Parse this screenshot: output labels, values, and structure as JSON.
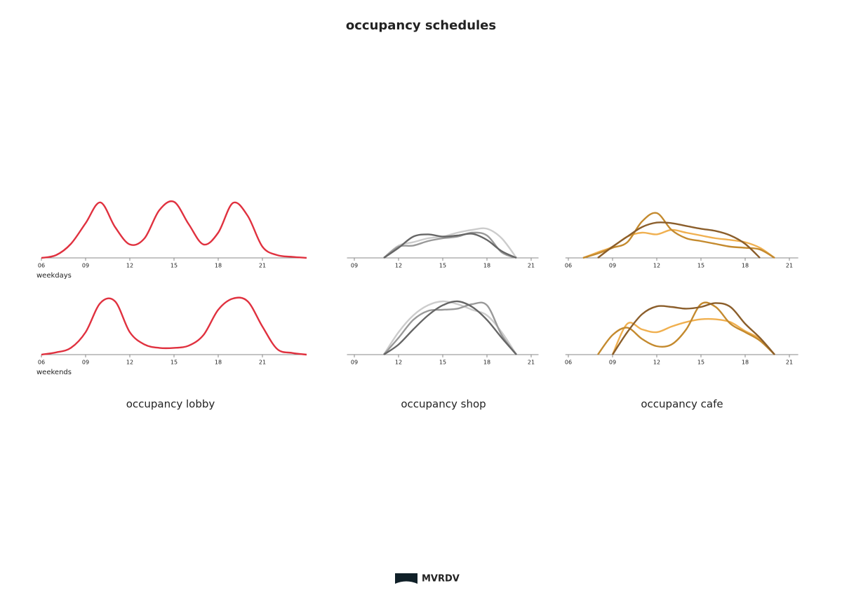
{
  "title": "occupancy schedules",
  "captions": [
    "occupancy lobby",
    "occupancy shop",
    "occupancy cafe"
  ],
  "logo": "MVRDV",
  "chart_data": [
    {
      "type": "line",
      "xlabel": "weekdays",
      "x": [
        6,
        7,
        8,
        9,
        10,
        11,
        12,
        13,
        14,
        15,
        16,
        17,
        18,
        19,
        20,
        21,
        22,
        23,
        24
      ],
      "series": [
        {
          "color": "#e0313f",
          "values": [
            0,
            5,
            25,
            62,
            99,
            55,
            24,
            35,
            85,
            100,
            60,
            24,
            45,
            98,
            75,
            20,
            5,
            2,
            0
          ]
        }
      ],
      "xlim": [
        6,
        24
      ],
      "ylim": [
        0,
        100
      ],
      "xticks": [
        {
          "value": 6,
          "label": "06"
        },
        {
          "value": 9,
          "label": "09"
        },
        12,
        15,
        18,
        21
      ]
    },
    {
      "type": "line",
      "xlabel": "weekends",
      "x": [
        6,
        7,
        8,
        9,
        10,
        11,
        12,
        13,
        14,
        15,
        16,
        17,
        18,
        19,
        20,
        21,
        22,
        23,
        24
      ],
      "series": [
        {
          "color": "#e0313f",
          "values": [
            0,
            4,
            12,
            40,
            92,
            95,
            40,
            18,
            12,
            12,
            16,
            35,
            80,
            100,
            95,
            50,
            10,
            3,
            0
          ]
        }
      ],
      "xlim": [
        6,
        24
      ],
      "ylim": [
        0,
        100
      ],
      "xticks": [
        {
          "value": 6,
          "label": "06"
        },
        {
          "value": 9,
          "label": "09"
        },
        12,
        15,
        18,
        21
      ]
    },
    {
      "type": "line",
      "x": [
        11,
        12,
        13,
        14,
        15,
        16,
        17,
        18,
        19,
        20
      ],
      "series": [
        {
          "color": "#cccccc",
          "values": [
            0,
            22,
            28,
            35,
            38,
            45,
            50,
            52,
            35,
            0
          ]
        },
        {
          "color": "#999999",
          "values": [
            0,
            20,
            22,
            30,
            35,
            38,
            45,
            40,
            10,
            0
          ]
        },
        {
          "color": "#666666",
          "values": [
            0,
            18,
            38,
            42,
            38,
            40,
            43,
            32,
            12,
            0
          ]
        }
      ],
      "xlim": [
        8.5,
        21.5
      ],
      "ylim": [
        0,
        100
      ],
      "xticks": [
        {
          "value": 9,
          "label": "09"
        },
        12,
        15,
        18,
        21
      ]
    },
    {
      "type": "line",
      "x": [
        11,
        12,
        13,
        14,
        15,
        16,
        17,
        18,
        19,
        20
      ],
      "series": [
        {
          "color": "#cccccc",
          "values": [
            0,
            40,
            70,
            88,
            95,
            90,
            80,
            70,
            40,
            0
          ]
        },
        {
          "color": "#999999",
          "values": [
            0,
            30,
            62,
            78,
            80,
            82,
            90,
            88,
            35,
            0
          ]
        },
        {
          "color": "#666666",
          "values": [
            0,
            18,
            45,
            70,
            88,
            95,
            85,
            62,
            30,
            0
          ]
        }
      ],
      "xlim": [
        8.5,
        21.5
      ],
      "ylim": [
        0,
        100
      ],
      "xticks": [
        {
          "value": 9,
          "label": "09"
        },
        12,
        15,
        18,
        21
      ]
    },
    {
      "type": "line",
      "x": [
        7,
        8,
        9,
        10,
        11,
        12,
        13,
        14,
        15,
        16,
        17,
        18,
        19,
        20
      ],
      "series": [
        {
          "color": "#f0b050",
          "values": [
            0,
            10,
            20,
            38,
            45,
            42,
            50,
            45,
            40,
            35,
            32,
            28,
            18,
            0
          ]
        },
        {
          "color": "#c48a2e",
          "values": [
            0,
            8,
            18,
            28,
            65,
            80,
            50,
            35,
            30,
            25,
            20,
            18,
            15,
            0
          ]
        },
        {
          "color": "#8b5e2b",
          "values": [
            null,
            0,
            20,
            38,
            55,
            63,
            62,
            57,
            52,
            48,
            40,
            25,
            0,
            null
          ]
        }
      ],
      "xlim": [
        5.8,
        21.6
      ],
      "ylim": [
        0,
        100
      ],
      "xticks": [
        {
          "value": 6,
          "label": "06"
        },
        {
          "value": 9,
          "label": "09"
        },
        12,
        15,
        18,
        21
      ]
    },
    {
      "type": "line",
      "x": [
        8,
        9,
        10,
        11,
        12,
        13,
        14,
        15,
        16,
        17,
        18,
        19,
        20
      ],
      "series": [
        {
          "color": "#f0b050",
          "values": [
            null,
            0,
            55,
            45,
            40,
            50,
            58,
            63,
            63,
            58,
            42,
            28,
            0
          ]
        },
        {
          "color": "#c48a2e",
          "values": [
            0,
            35,
            48,
            28,
            15,
            18,
            45,
            90,
            85,
            55,
            40,
            25,
            0
          ]
        },
        {
          "color": "#8b5e2b",
          "values": [
            null,
            0,
            40,
            72,
            86,
            85,
            82,
            85,
            92,
            85,
            55,
            30,
            0
          ]
        }
      ],
      "xlim": [
        5.8,
        21.6
      ],
      "ylim": [
        0,
        100
      ],
      "xticks": [
        {
          "value": 6,
          "label": "06"
        },
        {
          "value": 9,
          "label": "09"
        },
        12,
        15,
        18,
        21
      ]
    }
  ]
}
